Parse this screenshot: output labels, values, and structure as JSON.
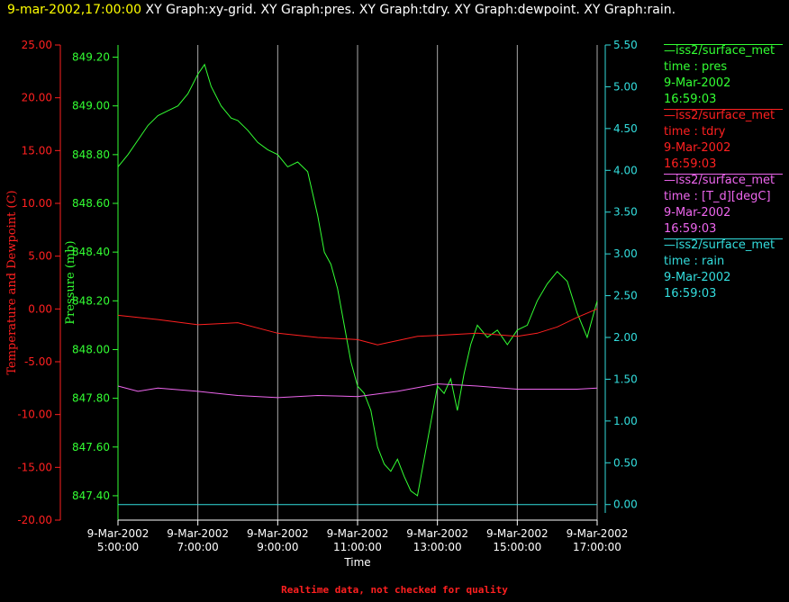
{
  "header": {
    "timestamp": "9-mar-2002,17:00:00",
    "graphs": "XY Graph:xy-grid.  XY Graph:pres.  XY Graph:tdry.  XY Graph:dewpoint.  XY Graph:rain."
  },
  "footer": {
    "note": "Realtime data, not checked for quality"
  },
  "colors": {
    "pres": "#33ff33",
    "tdry": "#ff2020",
    "dewpoint": "#ee66ee",
    "rain": "#33dddd",
    "grid": "#aaaaaa",
    "axis_x": "#ffffff"
  },
  "legend": [
    {
      "source": "iss2/surface_met",
      "var": "time : pres",
      "date": "9-Mar-2002",
      "time": "16:59:03",
      "color": "#33ff33"
    },
    {
      "source": "iss2/surface_met",
      "var": "time : tdry",
      "date": "9-Mar-2002",
      "time": "16:59:03",
      "color": "#ff2020"
    },
    {
      "source": "iss2/surface_met",
      "var": "time : [T_d][degC]",
      "date": "9-Mar-2002",
      "time": "16:59:03",
      "color": "#ee66ee"
    },
    {
      "source": "iss2/surface_met",
      "var": "time : rain",
      "date": "9-Mar-2002",
      "time": "16:59:03",
      "color": "#33dddd"
    }
  ],
  "chart_data": {
    "type": "line",
    "xlabel": "Time",
    "x_range": [
      "2002-03-09 05:00",
      "2002-03-09 17:00"
    ],
    "x_ticks": [
      {
        "date": "9-Mar-2002",
        "time": "5:00:00"
      },
      {
        "date": "9-Mar-2002",
        "time": "7:00:00"
      },
      {
        "date": "9-Mar-2002",
        "time": "9:00:00"
      },
      {
        "date": "9-Mar-2002",
        "time": "11:00:00"
      },
      {
        "date": "9-Mar-2002",
        "time": "13:00:00"
      },
      {
        "date": "9-Mar-2002",
        "time": "15:00:00"
      },
      {
        "date": "9-Mar-2002",
        "time": "17:00:00"
      }
    ],
    "axes": {
      "temp": {
        "label": "Temperature and Dewpoint (C)",
        "range": [
          -20,
          25
        ],
        "ticks": [
          "25.00",
          "20.00",
          "15.00",
          "10.00",
          "5.00",
          "0.00",
          "-5.00",
          "-10.00",
          "-15.00",
          "-20.00"
        ]
      },
      "pres": {
        "label": "Pressure (mb)",
        "range": [
          847.3,
          849.25
        ],
        "ticks": [
          "849.20",
          "849.00",
          "848.80",
          "848.60",
          "848.40",
          "848.20",
          "848.00",
          "847.80",
          "847.60",
          "847.40"
        ]
      },
      "rain": {
        "range": [
          -0.1,
          5.5
        ],
        "ticks": [
          "5.50",
          "5.00",
          "4.50",
          "4.00",
          "3.50",
          "3.00",
          "2.50",
          "2.00",
          "1.50",
          "1.00",
          "0.50",
          "0.00"
        ]
      }
    },
    "grid": true,
    "series": [
      {
        "name": "pres",
        "axis": "pres",
        "x": [
          "05:00",
          "05:15",
          "05:30",
          "05:45",
          "06:00",
          "06:15",
          "06:30",
          "06:45",
          "07:00",
          "07:10",
          "07:20",
          "07:35",
          "07:50",
          "08:00",
          "08:15",
          "08:30",
          "08:45",
          "09:00",
          "09:15",
          "09:30",
          "09:45",
          "10:00",
          "10:10",
          "10:20",
          "10:30",
          "10:40",
          "10:50",
          "11:00",
          "11:10",
          "11:20",
          "11:30",
          "11:40",
          "11:50",
          "12:00",
          "12:10",
          "12:20",
          "12:30",
          "12:40",
          "12:50",
          "13:00",
          "13:10",
          "13:20",
          "13:30",
          "13:40",
          "13:50",
          "14:00",
          "14:15",
          "14:30",
          "14:45",
          "15:00",
          "15:15",
          "15:30",
          "15:45",
          "16:00",
          "16:15",
          "16:30",
          "16:45",
          "17:00"
        ],
        "values": [
          848.75,
          848.8,
          848.86,
          848.92,
          848.96,
          848.98,
          849.0,
          849.05,
          849.13,
          849.17,
          849.08,
          849.0,
          848.95,
          848.94,
          848.9,
          848.85,
          848.82,
          848.8,
          848.75,
          848.77,
          848.73,
          848.55,
          848.4,
          848.35,
          848.25,
          848.1,
          847.95,
          847.85,
          847.82,
          847.75,
          847.6,
          847.53,
          847.5,
          847.55,
          847.48,
          847.42,
          847.4,
          847.55,
          847.7,
          847.85,
          847.82,
          847.88,
          847.75,
          847.9,
          848.02,
          848.1,
          848.05,
          848.08,
          848.02,
          848.08,
          848.1,
          848.2,
          848.27,
          848.32,
          848.28,
          848.15,
          848.05,
          848.2
        ]
      },
      {
        "name": "tdry",
        "axis": "temp",
        "x": [
          "05:00",
          "06:00",
          "07:00",
          "08:00",
          "09:00",
          "10:00",
          "11:00",
          "11:30",
          "12:00",
          "12:30",
          "13:00",
          "14:00",
          "15:00",
          "15:30",
          "16:00",
          "16:30",
          "17:00"
        ],
        "values": [
          -0.6,
          -1.0,
          -1.5,
          -1.3,
          -2.3,
          -2.7,
          -2.9,
          -3.4,
          -3.0,
          -2.6,
          -2.5,
          -2.3,
          -2.6,
          -2.3,
          -1.7,
          -0.8,
          0.0
        ]
      },
      {
        "name": "dewpoint",
        "axis": "temp",
        "x": [
          "05:00",
          "05:30",
          "06:00",
          "07:00",
          "08:00",
          "09:00",
          "10:00",
          "11:00",
          "12:00",
          "13:00",
          "14:00",
          "15:00",
          "16:00",
          "16:30",
          "17:00"
        ],
        "values": [
          -7.3,
          -7.8,
          -7.5,
          -7.8,
          -8.2,
          -8.4,
          -8.2,
          -8.3,
          -7.8,
          -7.1,
          -7.3,
          -7.6,
          -7.6,
          -7.6,
          -7.5
        ]
      },
      {
        "name": "rain",
        "axis": "rain",
        "x": [
          "05:00",
          "17:00"
        ],
        "values": [
          0.0,
          0.0
        ]
      }
    ]
  }
}
